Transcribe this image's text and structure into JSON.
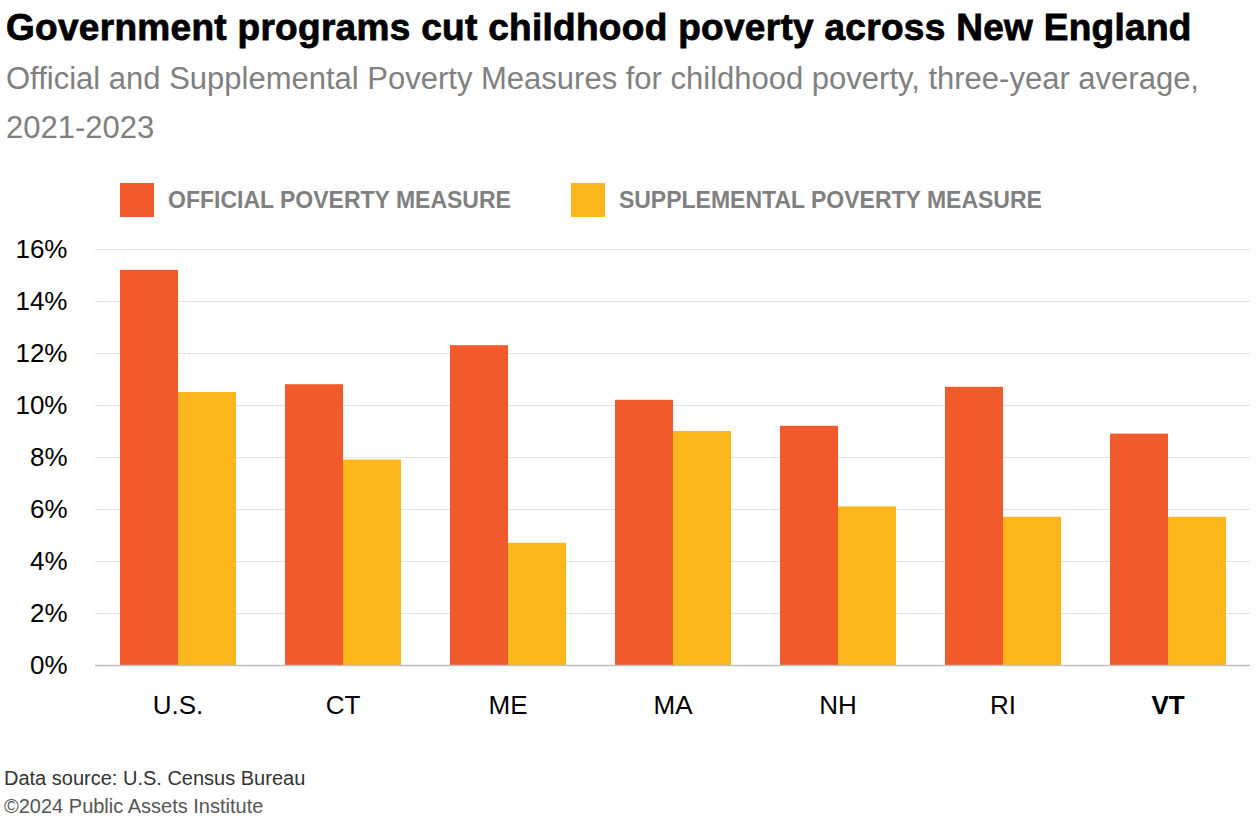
{
  "chart_data": {
    "type": "bar",
    "title": "Government programs cut childhood poverty across New England",
    "subtitle": "Official and Supplemental Poverty Measures for childhood poverty, three-year average, 2021-2023",
    "categories": [
      "U.S.",
      "CT",
      "ME",
      "MA",
      "NH",
      "RI",
      "VT"
    ],
    "series": [
      {
        "name": "OFFICIAL POVERTY MEASURE",
        "color": "#F15A2B",
        "values": [
          15.2,
          10.8,
          12.3,
          10.2,
          9.2,
          10.7,
          8.9
        ]
      },
      {
        "name": "SUPPLEMENTAL POVERTY MEASURE",
        "color": "#FBB61B",
        "values": [
          10.5,
          7.9,
          4.7,
          9.0,
          6.1,
          5.7,
          5.7
        ]
      }
    ],
    "ylim": [
      0,
      16
    ],
    "yticks": [
      {
        "value": 0,
        "label": "0%"
      },
      {
        "value": 2,
        "label": "2%"
      },
      {
        "value": 4,
        "label": "4%"
      },
      {
        "value": 6,
        "label": "6%"
      },
      {
        "value": 8,
        "label": "8%"
      },
      {
        "value": 10,
        "label": "10%"
      },
      {
        "value": 12,
        "label": "12%"
      },
      {
        "value": 14,
        "label": "14%"
      },
      {
        "value": 16,
        "label": "16%"
      }
    ],
    "grid": true,
    "legend": "top",
    "annotations": [
      "Data source: U.S. Census Bureau",
      "©2024 Public Assets Institute"
    ]
  }
}
